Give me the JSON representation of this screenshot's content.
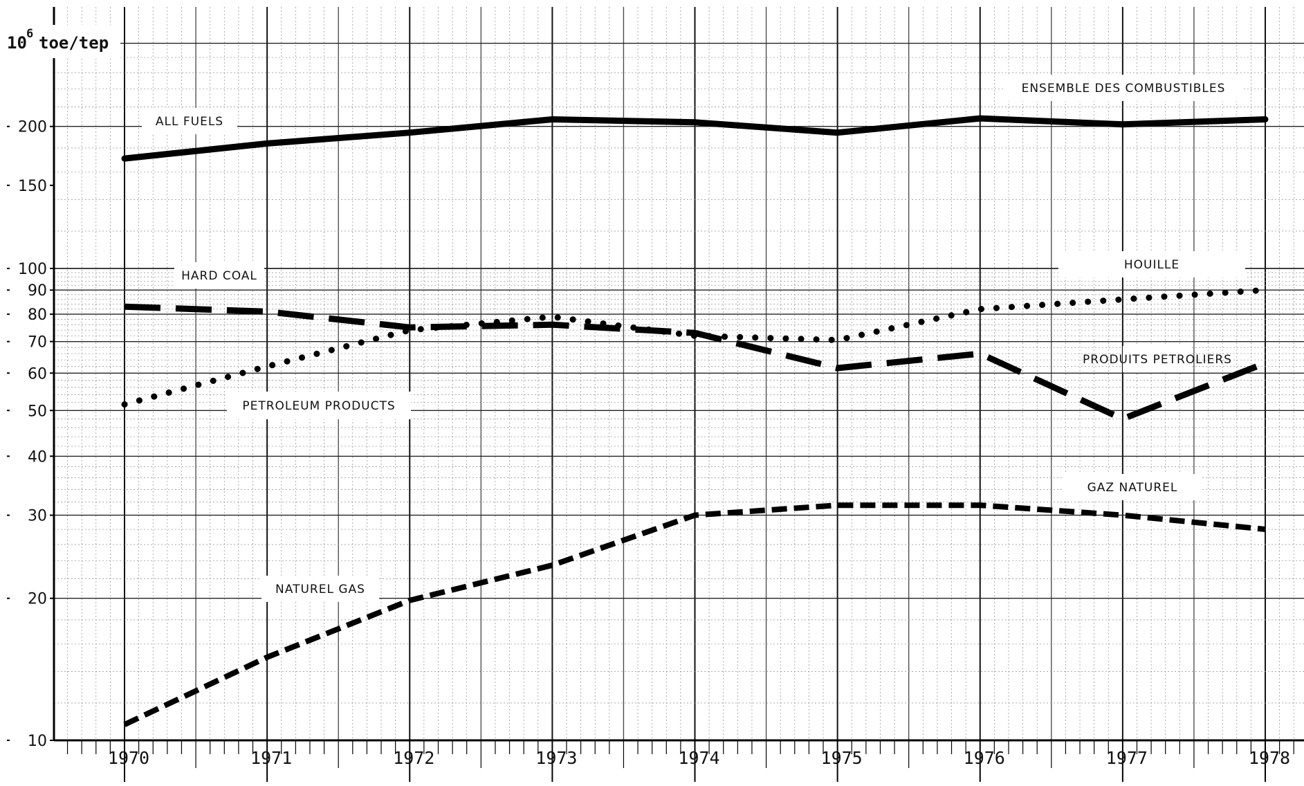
{
  "chart_data": {
    "type": "line",
    "title": "",
    "ylabel_base": "10",
    "ylabel_exp": "6",
    "ylabel_rest": "toe/tep",
    "yscale": "log",
    "ylim": [
      10,
      300
    ],
    "xlim": [
      1970,
      1978
    ],
    "grid": true,
    "x": [
      "1970",
      "1971",
      "1972",
      "1973",
      "1974",
      "1975",
      "1976",
      "1977",
      "1978"
    ],
    "yticks": [
      "10",
      "20",
      "30",
      "40",
      "50",
      "60",
      "70",
      "80",
      "90",
      "100",
      "150",
      "200"
    ],
    "series": [
      {
        "name": "all-fuels",
        "labels": [
          "ALL FUELS",
          "ENSEMBLE DES COMBUSTIBLES"
        ],
        "style": "solid",
        "values": [
          171,
          184,
          194,
          207,
          204,
          194,
          208,
          202,
          207
        ]
      },
      {
        "name": "hard-coal",
        "labels": [
          "HARD COAL",
          "HOUILLE"
        ],
        "style": "long-dash",
        "values": [
          83,
          81,
          75,
          76,
          73,
          61.5,
          66,
          48,
          63
        ]
      },
      {
        "name": "petroleum-products",
        "labels": [
          "PETROLEUM PRODUCTS",
          "PRODUITS PETROLIERS"
        ],
        "style": "dotted",
        "values": [
          51.5,
          62,
          74,
          79,
          72,
          70.5,
          82,
          86,
          90
        ]
      },
      {
        "name": "natural-gas",
        "labels": [
          "NATUREL GAS",
          "GAZ NATUREL"
        ],
        "style": "short-dash",
        "values": [
          10.8,
          15,
          19.8,
          23.5,
          30,
          31.5,
          31.5,
          30,
          28
        ]
      }
    ]
  }
}
